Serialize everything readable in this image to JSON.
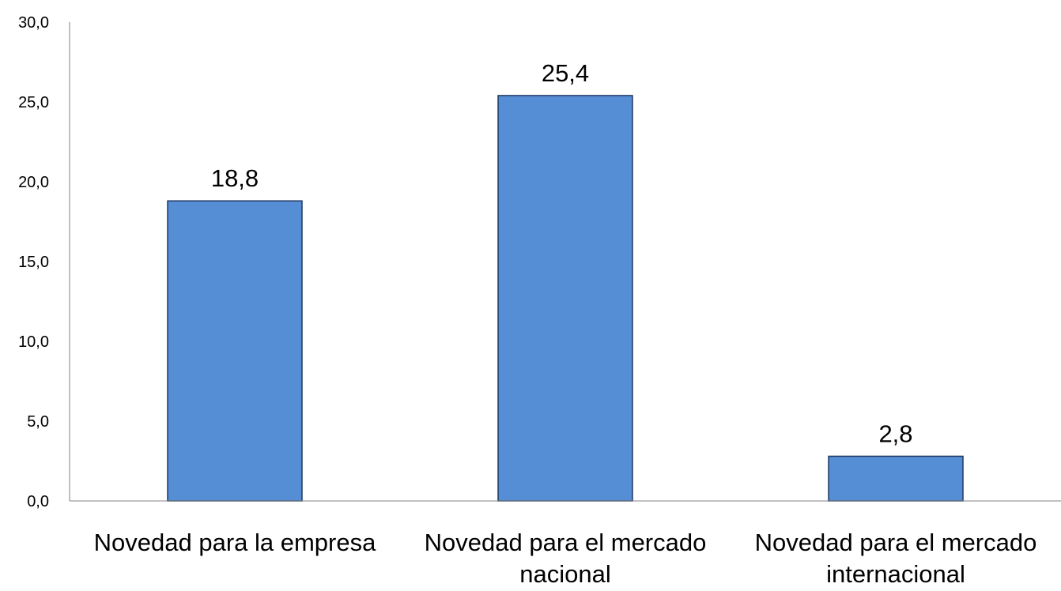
{
  "chart_data": {
    "type": "bar",
    "title": "",
    "xlabel": "",
    "ylabel": "",
    "categories": [
      [
        "Novedad para la empresa"
      ],
      [
        "Novedad para el mercado",
        "nacional"
      ],
      [
        "Novedad para el mercado",
        "internacional"
      ]
    ],
    "values": [
      18.8,
      25.4,
      2.8
    ],
    "value_labels": [
      "18,8",
      "25,4",
      "2,8"
    ],
    "ylim": [
      0,
      30
    ],
    "yticks": [
      0,
      5,
      10,
      15,
      20,
      25,
      30
    ],
    "ytick_labels": [
      "0,0",
      "5,0",
      "10,0",
      "15,0",
      "20,0",
      "25,0",
      "30,0"
    ],
    "grid": false,
    "legend": "none",
    "colors": {
      "bar_fill": "#558ED5",
      "bar_stroke": "#1F3864",
      "axis": "#808080"
    }
  }
}
